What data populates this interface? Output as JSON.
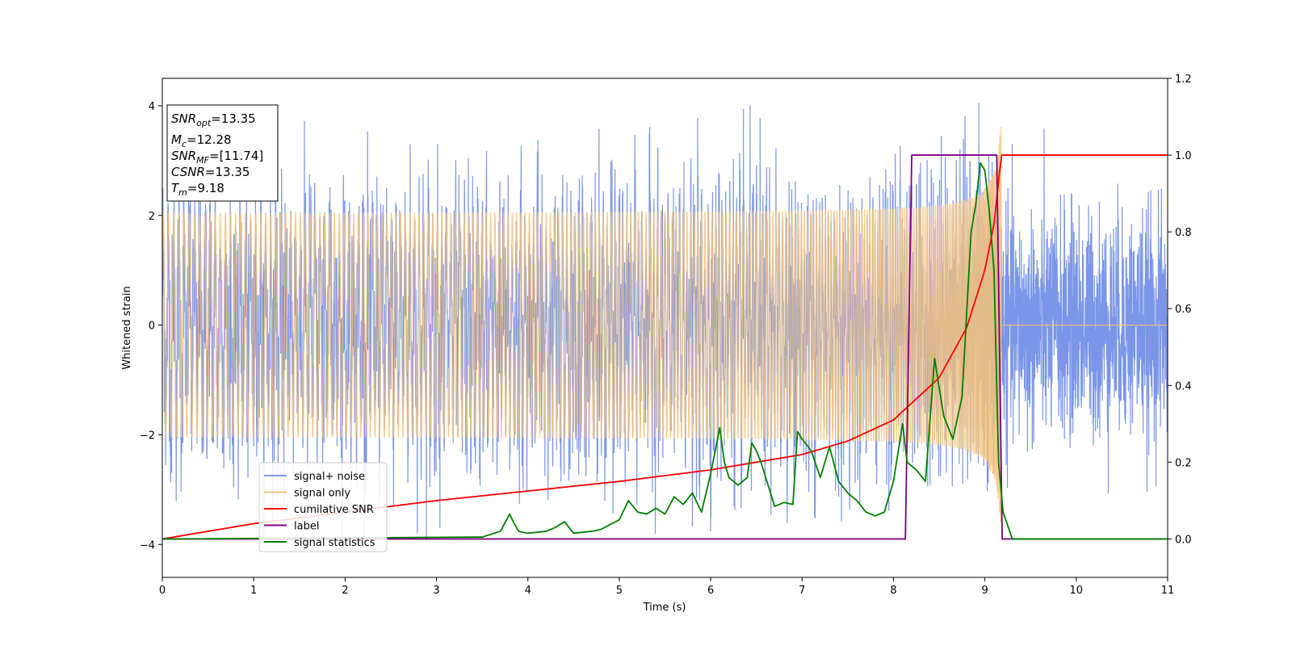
{
  "chart_data": {
    "type": "line",
    "xlabel": "Time (s)",
    "ylabel": "Whitened strain",
    "xlim": [
      0,
      11
    ],
    "ylim": [
      -4.6,
      4.5
    ],
    "y2lim": [
      -0.1,
      1.2
    ],
    "x_ticks": [
      0,
      1,
      2,
      3,
      4,
      5,
      6,
      7,
      8,
      9,
      10,
      11
    ],
    "y_ticks": [
      4,
      2,
      0,
      -2,
      -4
    ],
    "y_tick_labels": [
      "4",
      "2",
      "0",
      "−2",
      "−4"
    ],
    "y2_ticks": [
      1.2,
      1.0,
      0.8,
      0.6,
      0.4,
      0.2,
      0.0
    ],
    "y2_tick_labels": [
      "1.2",
      "1.0",
      "0.8",
      "0.6",
      "0.4",
      "0.2",
      "0.0"
    ],
    "legend_placement": "lower-left",
    "series": [
      {
        "name": "signal+ noise",
        "color": "#7b96e8",
        "axis": "left",
        "kind": "gaussian-noise plus signal",
        "std": 1.0,
        "range": [
          -4.0,
          4.05
        ]
      },
      {
        "name": "signal only",
        "color": "#f5c27a",
        "axis": "left",
        "kind": "chirp",
        "amplitude_start": 0.03,
        "amplitude_end": 2.0,
        "t_start": 0,
        "t_merge": 9.18
      },
      {
        "name": "cumilative SNR",
        "color": "#ff0000",
        "axis": "right",
        "x": [
          0,
          1,
          2,
          3,
          4,
          5,
          6,
          6.5,
          7,
          7.5,
          8,
          8.5,
          8.8,
          9.0,
          9.1,
          9.18,
          11
        ],
        "y": [
          0.0,
          0.04,
          0.07,
          0.1,
          0.125,
          0.15,
          0.18,
          0.2,
          0.22,
          0.255,
          0.31,
          0.42,
          0.55,
          0.7,
          0.82,
          1.0,
          1.0
        ]
      },
      {
        "name": "label",
        "color": "#800080",
        "axis": "right",
        "x": [
          0,
          8.13,
          8.2,
          9.13,
          9.19,
          11
        ],
        "y": [
          0,
          0,
          1,
          1,
          0,
          0
        ]
      },
      {
        "name": "signal statistics",
        "color": "#008000",
        "axis": "right",
        "x": [
          0,
          3.5,
          3.7,
          3.8,
          3.85,
          3.9,
          4.0,
          4.2,
          4.3,
          4.4,
          4.5,
          4.7,
          4.8,
          5.0,
          5.1,
          5.2,
          5.3,
          5.4,
          5.5,
          5.6,
          5.7,
          5.8,
          5.9,
          6.0,
          6.1,
          6.15,
          6.2,
          6.3,
          6.4,
          6.45,
          6.5,
          6.55,
          6.7,
          6.8,
          6.9,
          6.95,
          7.0,
          7.1,
          7.2,
          7.3,
          7.4,
          7.5,
          7.6,
          7.7,
          7.8,
          7.9,
          8.0,
          8.1,
          8.15,
          8.25,
          8.35,
          8.45,
          8.55,
          8.65,
          8.75,
          8.85,
          8.9,
          8.95,
          9.0,
          9.05,
          9.1,
          9.15,
          9.2,
          9.3,
          11
        ],
        "y": [
          0.0,
          0.005,
          0.02,
          0.065,
          0.04,
          0.02,
          0.015,
          0.02,
          0.03,
          0.045,
          0.015,
          0.02,
          0.025,
          0.05,
          0.1,
          0.07,
          0.065,
          0.08,
          0.065,
          0.11,
          0.09,
          0.12,
          0.07,
          0.17,
          0.29,
          0.2,
          0.16,
          0.14,
          0.16,
          0.25,
          0.23,
          0.2,
          0.085,
          0.095,
          0.09,
          0.28,
          0.26,
          0.23,
          0.16,
          0.24,
          0.15,
          0.12,
          0.1,
          0.07,
          0.06,
          0.07,
          0.15,
          0.3,
          0.2,
          0.18,
          0.15,
          0.47,
          0.32,
          0.26,
          0.37,
          0.8,
          0.87,
          0.98,
          0.96,
          0.85,
          0.7,
          0.2,
          0.07,
          0.0,
          0.0
        ]
      }
    ]
  },
  "info_box": {
    "snr_opt_var": "SNR",
    "snr_opt_sub": "opt",
    "snr_opt_val": "=13.35",
    "mc_var": "M",
    "mc_sub": "c",
    "mc_val": "=12.28",
    "snr_mf_var": "SNR",
    "snr_mf_sub": "MF",
    "snr_mf_val": "=[11.74]",
    "csnr_var": "CSNR",
    "csnr_val": "=13.35",
    "tm_var": "T",
    "tm_sub": "m",
    "tm_val": "=9.18"
  }
}
